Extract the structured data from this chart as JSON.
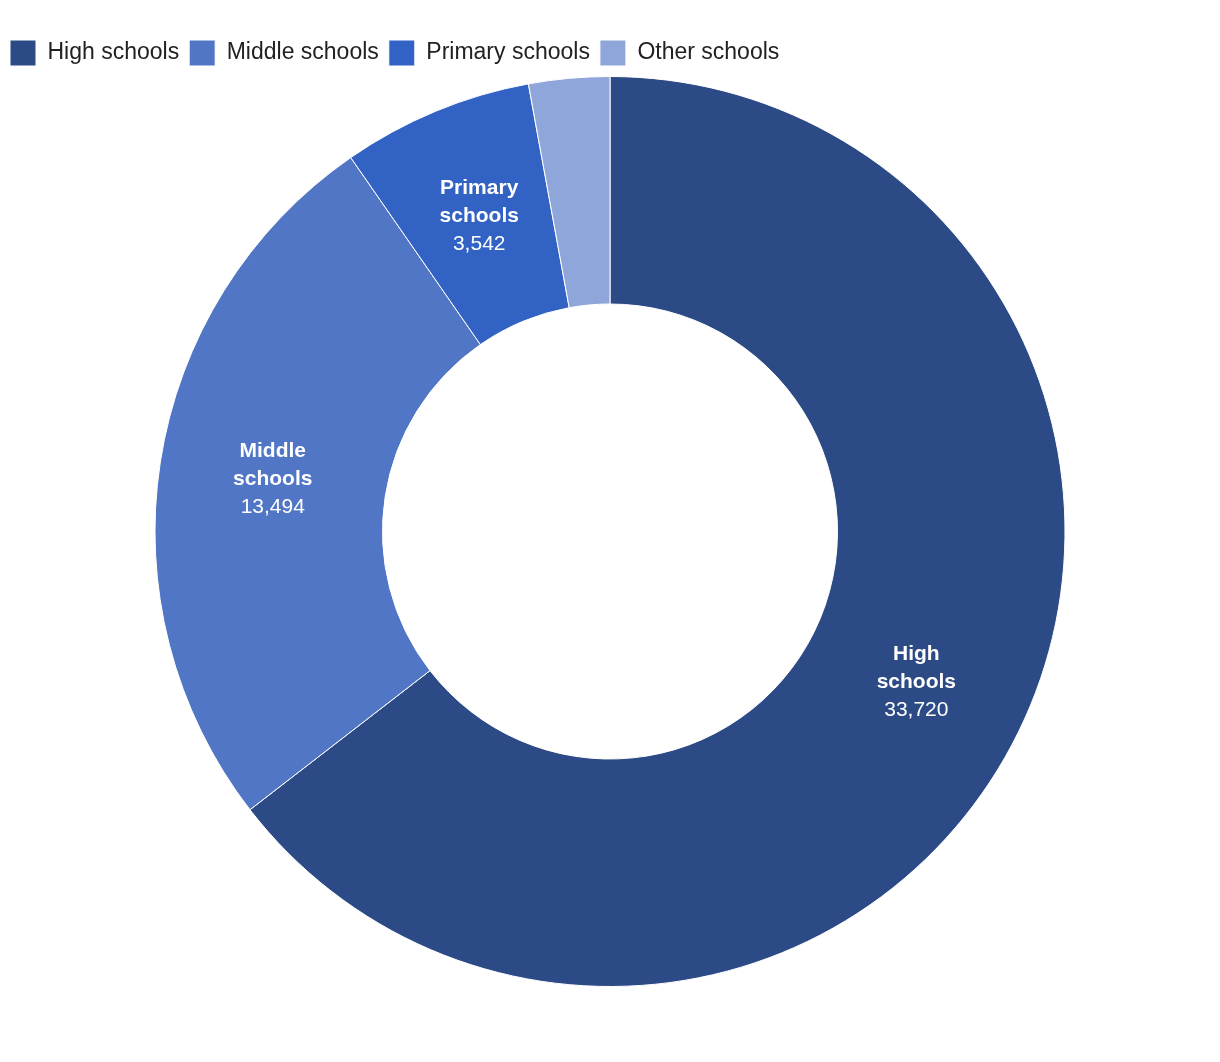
{
  "chart_data": {
    "type": "donut",
    "categories": [
      "High schools",
      "Middle schools",
      "Primary schools",
      "Other schools"
    ],
    "values": [
      33720,
      13494,
      3542,
      1500
    ],
    "colors": [
      "#2c4a85",
      "#5176c5",
      "#3162c4",
      "#8fa6da"
    ],
    "value_labels": [
      "33,720",
      "13,494",
      "3,542",
      null
    ],
    "legend": "top left"
  }
}
